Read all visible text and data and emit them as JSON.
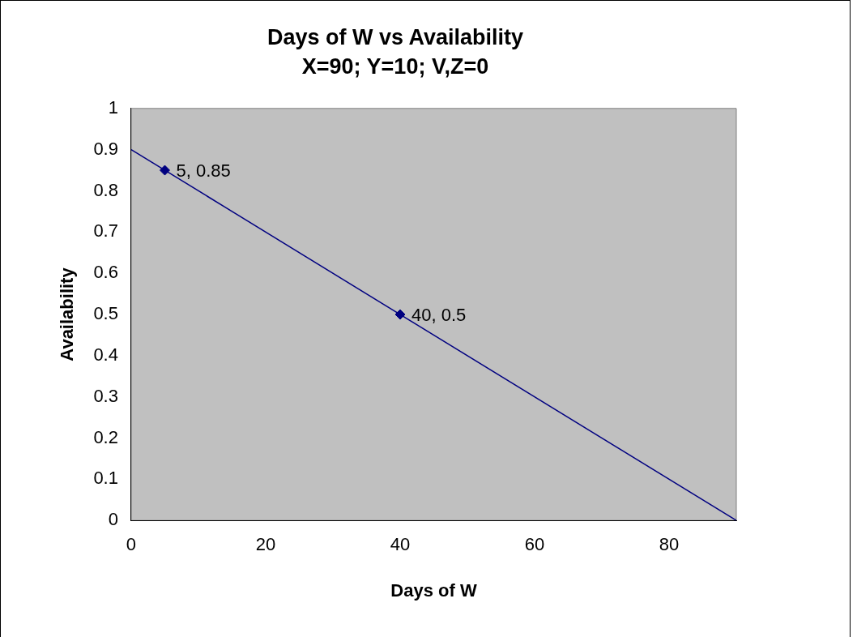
{
  "chart_data": {
    "type": "line",
    "title": "Days of W vs Availability",
    "subtitle": "X=90; Y=10; V,Z=0",
    "xlabel": "Days of W",
    "ylabel": "Availability",
    "series": [
      {
        "color": "#000080",
        "x": [
          0,
          90
        ],
        "values": [
          0.9,
          0
        ],
        "marker": "none"
      },
      {
        "type": "scatter",
        "color": "#000080",
        "x": [
          5,
          40
        ],
        "values": [
          0.85,
          0.5
        ],
        "marker": "diamond"
      }
    ],
    "annotations": [
      {
        "text": "5, 0.85",
        "x": 5,
        "y": 0.85
      },
      {
        "text": "40, 0.5",
        "x": 40,
        "y": 0.5
      }
    ],
    "xlim": [
      0,
      90
    ],
    "xticks": [
      0,
      20,
      40,
      60,
      80
    ],
    "ylim": [
      0,
      1
    ],
    "yticks": [
      0,
      0.1,
      0.2,
      0.3,
      0.4,
      0.5,
      0.6,
      0.7,
      0.8,
      0.9,
      1
    ],
    "grid": false,
    "legend": false
  }
}
